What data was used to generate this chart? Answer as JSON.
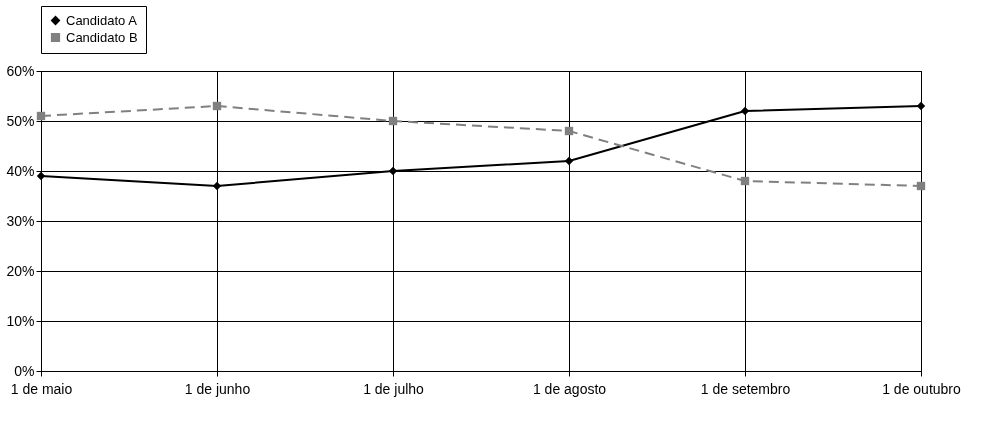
{
  "chart_data": {
    "type": "line",
    "categories": [
      "1 de maio",
      "1 de junho",
      "1 de julho",
      "1 de agosto",
      "1 de setembro",
      "1 de outubro"
    ],
    "series": [
      {
        "name": "Candidato A",
        "color": "#000000",
        "marker": "diamond",
        "line_style": "solid",
        "values": [
          39,
          37,
          40,
          42,
          52,
          53
        ]
      },
      {
        "name": "Candidato B",
        "color": "#808080",
        "marker": "square",
        "line_style": "dashed",
        "values": [
          51,
          53,
          50,
          48,
          38,
          37
        ]
      }
    ],
    "ylim": [
      0,
      60
    ],
    "yticks": [
      {
        "value": 0,
        "label": "0%"
      },
      {
        "value": 10,
        "label": "10%"
      },
      {
        "value": 20,
        "label": "20%"
      },
      {
        "value": 30,
        "label": "30%"
      },
      {
        "value": 40,
        "label": "40%"
      },
      {
        "value": 50,
        "label": "50%"
      },
      {
        "value": 60,
        "label": "60%"
      }
    ],
    "grid": true,
    "legend": "top"
  }
}
